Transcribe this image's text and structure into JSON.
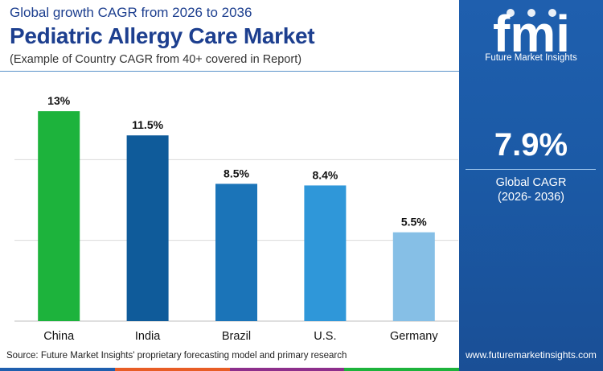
{
  "header": {
    "subtitle": "Global growth CAGR from 2026 to 2036",
    "title": "Pediatric Allergy Care Market",
    "note": "(Example of Country CAGR from 40+ covered in Report)"
  },
  "chart_data": {
    "type": "bar",
    "categories": [
      "China",
      "India",
      "Brazil",
      "U.S.",
      "Germany"
    ],
    "values": [
      13,
      11.5,
      8.5,
      8.4,
      5.5
    ],
    "data_labels": [
      "13%",
      "11.5%",
      "8.5%",
      "8.4%",
      "5.5%"
    ],
    "unit": "%",
    "ylim": [
      0,
      15
    ],
    "grid": true,
    "bar_colors": [
      "#1db33c",
      "#0f5b9a",
      "#1b74b8",
      "#2f97d9",
      "#86bfe6"
    ]
  },
  "source": "Source: Future Market Insights' proprietary forecasting model and primary research",
  "sidebar": {
    "logo_text": "fmi",
    "brand": "Future Market Insights",
    "cagr_value": "7.9%",
    "cagr_label": "Global CAGR",
    "cagr_period": "(2026- 2036)",
    "url": "www.futuremarketinsights.com"
  },
  "colors": {
    "title": "#1d3f8f",
    "panel": "#1f5fae",
    "accent_strip": [
      "#1f5fae",
      "#e85d26",
      "#8d2f8c",
      "#1db33c"
    ]
  }
}
